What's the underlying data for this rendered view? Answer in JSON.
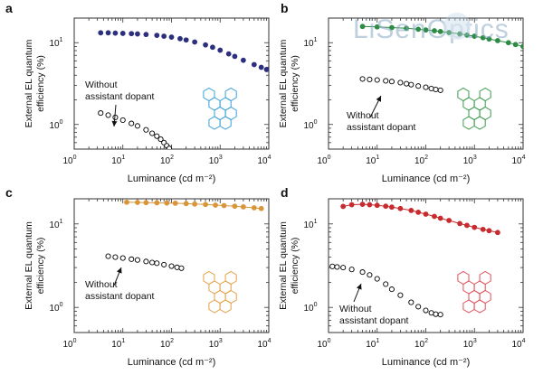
{
  "watermark": {
    "text": "LiSenOptics"
  },
  "chart_data": [
    {
      "panel": "a",
      "type": "scatter",
      "xlabel": "Luminance (cd m⁻²)",
      "ylabel_line1": "External EL quantum",
      "ylabel_line2": "efficiency (%)",
      "xscale": "log",
      "yscale": "log",
      "xlim": [
        1,
        10000
      ],
      "ylim": [
        0.5,
        20
      ],
      "xticks": [
        {
          "v": 1,
          "b": "10",
          "e": "0"
        },
        {
          "v": 10,
          "b": "10",
          "e": "1"
        },
        {
          "v": 100,
          "b": "10",
          "e": "2"
        },
        {
          "v": 1000,
          "b": "10",
          "e": "3"
        },
        {
          "v": 10000,
          "b": "10",
          "e": "4"
        }
      ],
      "yticks": [
        {
          "v": 1,
          "b": "10",
          "e": "0"
        },
        {
          "v": 10,
          "b": "10",
          "e": "1"
        }
      ],
      "annotation_line1": "Without",
      "annotation_line2": "assistant dopant",
      "molecule_color": "#3aa0d8",
      "series": [
        {
          "color": "#2c2f7e",
          "filled": true,
          "line": false,
          "x": [
            3.5,
            5,
            7,
            10,
            15,
            20,
            30,
            50,
            70,
            100,
            150,
            200,
            300,
            500,
            700,
            1000,
            1500,
            2000,
            3000,
            5000,
            7000,
            9000
          ],
          "y": [
            13.2,
            13.2,
            13.1,
            13.0,
            12.9,
            12.8,
            12.6,
            12.3,
            12.0,
            11.7,
            11.2,
            10.8,
            10.2,
            9.4,
            8.8,
            8.1,
            7.3,
            6.8,
            6.1,
            5.4,
            5.0,
            4.7
          ]
        },
        {
          "color": "#000000",
          "filled": false,
          "line": false,
          "x": [
            3.5,
            5,
            7,
            10,
            15,
            20,
            30,
            40,
            50,
            60,
            70,
            80,
            90
          ],
          "y": [
            1.38,
            1.3,
            1.22,
            1.13,
            1.03,
            0.96,
            0.86,
            0.78,
            0.72,
            0.66,
            0.6,
            0.55,
            0.51
          ]
        }
      ]
    },
    {
      "panel": "b",
      "type": "scatter",
      "xlabel": "Luminance (cd m⁻²)",
      "ylabel_line1": "External EL quantum",
      "ylabel_line2": "efficiency (%)",
      "xscale": "log",
      "yscale": "log",
      "xlim": [
        1,
        10000
      ],
      "ylim": [
        0.5,
        20
      ],
      "xticks": [
        {
          "v": 1,
          "b": "10",
          "e": "0"
        },
        {
          "v": 10,
          "b": "10",
          "e": "1"
        },
        {
          "v": 100,
          "b": "10",
          "e": "2"
        },
        {
          "v": 1000,
          "b": "10",
          "e": "3"
        },
        {
          "v": 10000,
          "b": "10",
          "e": "4"
        }
      ],
      "yticks": [
        {
          "v": 1,
          "b": "10",
          "e": "0"
        },
        {
          "v": 10,
          "b": "10",
          "e": "1"
        }
      ],
      "annotation_line1": "Without",
      "annotation_line2": "assistant dopant",
      "molecule_color": "#3c9a4c",
      "series": [
        {
          "color": "#2e8b44",
          "filled": true,
          "line": true,
          "x": [
            5,
            10,
            20,
            40,
            70,
            100,
            150,
            200,
            300,
            500,
            700,
            1000,
            1500,
            2000,
            3000,
            5000,
            7000,
            10000
          ],
          "y": [
            15.8,
            15.6,
            15.3,
            15.0,
            14.6,
            14.3,
            14.0,
            13.7,
            13.3,
            12.8,
            12.4,
            12.0,
            11.5,
            11.1,
            10.6,
            10.0,
            9.5,
            9.0
          ]
        },
        {
          "color": "#000000",
          "filled": false,
          "line": false,
          "x": [
            5,
            7,
            10,
            15,
            20,
            30,
            40,
            50,
            70,
            100,
            130,
            160,
            200
          ],
          "y": [
            3.6,
            3.55,
            3.5,
            3.42,
            3.35,
            3.25,
            3.15,
            3.07,
            2.95,
            2.85,
            2.75,
            2.68,
            2.62
          ]
        }
      ]
    },
    {
      "panel": "c",
      "type": "scatter",
      "xlabel": "Luminance (cd m⁻²)",
      "ylabel_line1": "External EL quantum",
      "ylabel_line2": "efficiency (%)",
      "xscale": "log",
      "yscale": "log",
      "xlim": [
        1,
        10000
      ],
      "ylim": [
        0.5,
        20
      ],
      "xticks": [
        {
          "v": 1,
          "b": "10",
          "e": "0"
        },
        {
          "v": 10,
          "b": "10",
          "e": "1"
        },
        {
          "v": 100,
          "b": "10",
          "e": "2"
        },
        {
          "v": 1000,
          "b": "10",
          "e": "3"
        },
        {
          "v": 10000,
          "b": "10",
          "e": "4"
        }
      ],
      "yticks": [
        {
          "v": 1,
          "b": "10",
          "e": "0"
        },
        {
          "v": 10,
          "b": "10",
          "e": "1"
        }
      ],
      "annotation_line1": "Without",
      "annotation_line2": "assistant dopant",
      "molecule_color": "#e3a046",
      "series": [
        {
          "color": "#d9953a",
          "filled": true,
          "line": true,
          "x": [
            12,
            20,
            30,
            50,
            80,
            120,
            200,
            300,
            500,
            800,
            1200,
            2000,
            3000,
            5000,
            7000
          ],
          "y": [
            18.2,
            18.1,
            18.0,
            17.9,
            17.8,
            17.7,
            17.5,
            17.3,
            17.1,
            16.8,
            16.6,
            16.3,
            16.0,
            15.6,
            15.3
          ]
        },
        {
          "color": "#000000",
          "filled": false,
          "line": false,
          "x": [
            5,
            7,
            10,
            15,
            20,
            30,
            40,
            50,
            70,
            100,
            130,
            160
          ],
          "y": [
            4.1,
            4.0,
            3.9,
            3.78,
            3.7,
            3.55,
            3.45,
            3.38,
            3.25,
            3.12,
            3.02,
            2.95
          ]
        }
      ]
    },
    {
      "panel": "d",
      "type": "scatter",
      "xlabel": "Luminance (cd m⁻²)",
      "ylabel_line1": "External EL quantum",
      "ylabel_line2": "efficiency (%)",
      "xscale": "log",
      "yscale": "log",
      "xlim": [
        1,
        10000
      ],
      "ylim": [
        0.5,
        20
      ],
      "xticks": [
        {
          "v": 1,
          "b": "10",
          "e": "0"
        },
        {
          "v": 10,
          "b": "10",
          "e": "1"
        },
        {
          "v": 100,
          "b": "10",
          "e": "2"
        },
        {
          "v": 1000,
          "b": "10",
          "e": "3"
        },
        {
          "v": 10000,
          "b": "10",
          "e": "4"
        }
      ],
      "yticks": [
        {
          "v": 1,
          "b": "10",
          "e": "0"
        },
        {
          "v": 10,
          "b": "10",
          "e": "1"
        }
      ],
      "annotation_line1": "Without",
      "annotation_line2": "assistant dopant",
      "molecule_color": "#e0505a",
      "series": [
        {
          "color": "#c82a2e",
          "filled": true,
          "line": true,
          "x": [
            2,
            3,
            5,
            7,
            10,
            15,
            20,
            30,
            50,
            70,
            100,
            150,
            200,
            300,
            500,
            700,
            1000,
            1500,
            2000,
            3000
          ],
          "y": [
            16.2,
            17.0,
            17.2,
            17.0,
            16.7,
            16.3,
            15.9,
            15.3,
            14.5,
            13.8,
            13.1,
            12.3,
            11.7,
            11.0,
            10.1,
            9.6,
            9.1,
            8.6,
            8.3,
            7.9
          ]
        },
        {
          "color": "#000000",
          "filled": false,
          "line": false,
          "x": [
            1.2,
            1.5,
            2,
            3,
            5,
            7,
            10,
            15,
            20,
            30,
            50,
            70,
            100,
            130,
            160,
            200
          ],
          "y": [
            3.1,
            3.05,
            3.0,
            2.85,
            2.65,
            2.45,
            2.2,
            1.9,
            1.65,
            1.4,
            1.15,
            1.02,
            0.92,
            0.86,
            0.83,
            0.82
          ]
        }
      ]
    }
  ]
}
